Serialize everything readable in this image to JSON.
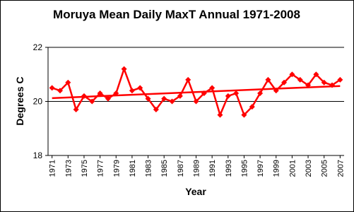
{
  "chart_data": {
    "type": "line",
    "title": "Moruya Mean Daily MaxT Annual 1971-2008",
    "x_label": "Year",
    "y_label": "Degrees C",
    "x": [
      1971,
      1972,
      1973,
      1974,
      1975,
      1976,
      1977,
      1978,
      1979,
      1980,
      1981,
      1982,
      1983,
      1984,
      1985,
      1986,
      1987,
      1988,
      1989,
      1990,
      1991,
      1992,
      1993,
      1994,
      1995,
      1996,
      1997,
      1998,
      1999,
      2000,
      2001,
      2002,
      2003,
      2004,
      2005,
      2006,
      2007
    ],
    "series": [
      {
        "color": "#ff0000",
        "values": [
          20.5,
          20.4,
          20.7,
          19.7,
          20.2,
          20.0,
          20.3,
          20.1,
          20.3,
          21.2,
          20.4,
          20.5,
          20.1,
          19.7,
          20.1,
          20.0,
          20.2,
          20.8,
          20.0,
          20.3,
          20.5,
          19.5,
          20.2,
          20.3,
          19.5,
          19.8,
          20.3,
          20.8,
          20.4,
          20.7,
          21.0,
          20.8,
          20.6,
          21.0,
          20.7,
          20.6,
          20.8
        ]
      }
    ],
    "trend": {
      "color": "#ff0000",
      "x": [
        1971,
        2007
      ],
      "values": [
        20.12,
        20.57
      ]
    },
    "xlim": [
      1970.5,
      2007.5
    ],
    "xticks": [
      1971,
      1973,
      1975,
      1977,
      1979,
      1981,
      1983,
      1985,
      1987,
      1989,
      1991,
      1993,
      1995,
      1997,
      1999,
      2001,
      2003,
      2005,
      2007
    ],
    "ylim": [
      18,
      22
    ],
    "yticks": [
      18,
      20,
      22
    ],
    "grid": true
  }
}
